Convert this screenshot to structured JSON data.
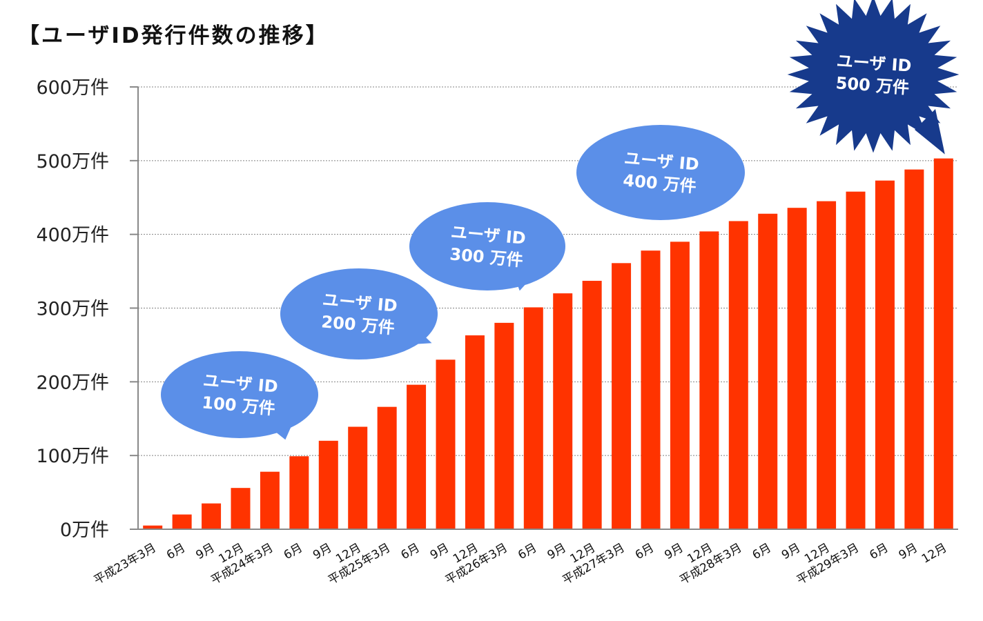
{
  "title": "【ユーザID発行件数の推移】",
  "colors": {
    "bar": "#ff3300",
    "callout": "#5b8fe8",
    "star": "#173a8c",
    "grid": "#808080"
  },
  "chart_data": {
    "type": "bar",
    "title": "【ユーザID発行件数の推移】",
    "xlabel": "",
    "ylabel": "",
    "unit": "万件",
    "ylim": [
      0,
      600
    ],
    "yticks": [
      0,
      100,
      200,
      300,
      400,
      500,
      600
    ],
    "ytick_labels": [
      "0万件",
      "100万件",
      "200万件",
      "300万件",
      "400万件",
      "500万件",
      "600万件"
    ],
    "grid": true,
    "categories": [
      "平成23年3月",
      "6月",
      "9月",
      "12月",
      "平成24年3月",
      "6月",
      "9月",
      "12月",
      "平成25年3月",
      "6月",
      "9月",
      "12月",
      "平成26年3月",
      "6月",
      "9月",
      "12月",
      "平成27年3月",
      "6月",
      "9月",
      "12月",
      "平成28年3月",
      "6月",
      "9月",
      "12月",
      "平成29年3月",
      "6月",
      "9月",
      "12月"
    ],
    "values": [
      5,
      20,
      35,
      56,
      78,
      99,
      120,
      139,
      166,
      196,
      230,
      263,
      280,
      301,
      320,
      337,
      361,
      378,
      390,
      404,
      418,
      428,
      436,
      445,
      458,
      473,
      488,
      503
    ],
    "annotations": [
      {
        "line1": "ユーザ ID",
        "line2": "100 万件",
        "category_index": 5,
        "shape": "speech-bubble"
      },
      {
        "line1": "ユーザ ID",
        "line2": "200 万件",
        "category_index": 10,
        "shape": "speech-bubble"
      },
      {
        "line1": "ユーザ ID",
        "line2": "300 万件",
        "category_index": 13,
        "shape": "speech-bubble"
      },
      {
        "line1": "ユーザ ID",
        "line2": "400 万件",
        "category_index": 19,
        "shape": "speech-bubble"
      },
      {
        "line1": "ユーザ ID",
        "line2": "500 万件",
        "category_index": 27,
        "shape": "starburst"
      }
    ]
  }
}
